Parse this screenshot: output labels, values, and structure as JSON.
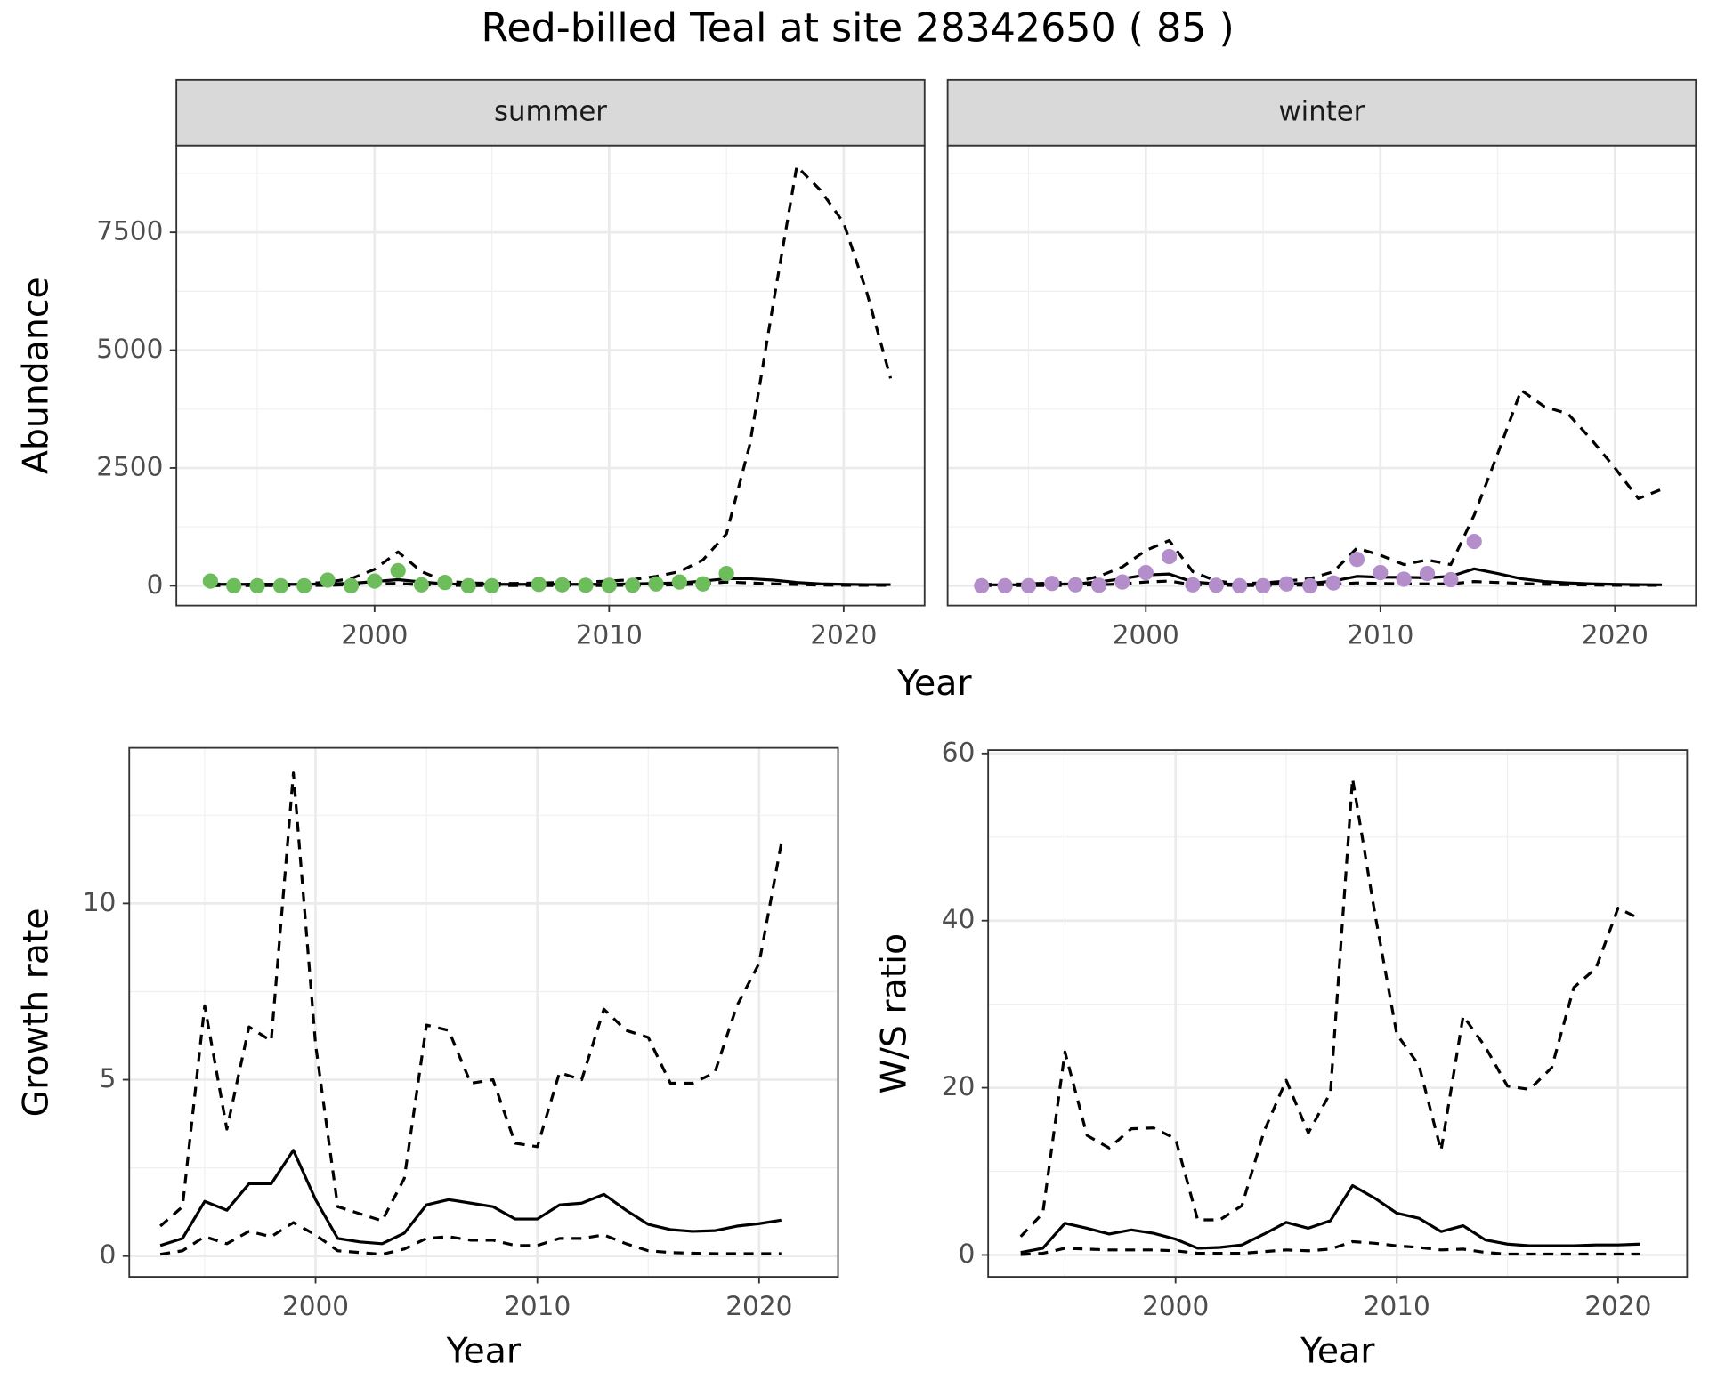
{
  "title": "Red-billed Teal at site 28342650 ( 85 )",
  "facet_xlabel": "Year",
  "facet_ylabel": "Abundance",
  "chart_data": [
    {
      "type": "line",
      "strip": "summer",
      "show_ytick_labels": true,
      "xlim": [
        1991.55,
        2023.45
      ],
      "xticks": [
        2000,
        2010,
        2020
      ],
      "xminor": [
        1995,
        2005,
        2015
      ],
      "ylim": [
        -420,
        9340
      ],
      "yticks": [
        0,
        2500,
        5000,
        7500
      ],
      "yminor": [
        1250,
        3750,
        6250,
        8750
      ],
      "grid": true,
      "x": [
        1993,
        1994,
        1995,
        1996,
        1997,
        1998,
        1999,
        2000,
        2001,
        2002,
        2003,
        2004,
        2005,
        2006,
        2007,
        2008,
        2009,
        2010,
        2011,
        2012,
        2013,
        2014,
        2015,
        2016,
        2017,
        2018,
        2019,
        2020,
        2021,
        2022
      ],
      "series": [
        {
          "kind": "line",
          "dash": true,
          "color": "#000000",
          "values": [
            40,
            30,
            30,
            30,
            40,
            80,
            150,
            350,
            720,
            300,
            100,
            60,
            50,
            50,
            60,
            70,
            80,
            100,
            130,
            200,
            300,
            550,
            1100,
            3000,
            6000,
            8900,
            8400,
            7700,
            6200,
            4400
          ]
        },
        {
          "kind": "line",
          "dash": false,
          "color": "#000000",
          "values": [
            30,
            30,
            30,
            30,
            30,
            40,
            50,
            90,
            130,
            80,
            40,
            30,
            30,
            30,
            30,
            30,
            30,
            30,
            40,
            50,
            60,
            100,
            150,
            150,
            120,
            70,
            40,
            30,
            25,
            25
          ]
        },
        {
          "kind": "line",
          "dash": true,
          "color": "#000000",
          "values": [
            5,
            5,
            5,
            5,
            5,
            10,
            20,
            40,
            50,
            20,
            10,
            5,
            5,
            5,
            5,
            5,
            5,
            5,
            10,
            15,
            20,
            40,
            80,
            60,
            40,
            25,
            15,
            10,
            10,
            10
          ]
        },
        {
          "kind": "points",
          "color": "#6dbd5d",
          "values": [
            100,
            0,
            0,
            0,
            0,
            120,
            0,
            100,
            320,
            20,
            70,
            0,
            0,
            null,
            30,
            20,
            10,
            10,
            10,
            40,
            80,
            40,
            260,
            null,
            null,
            null,
            null,
            null,
            null,
            null
          ]
        }
      ]
    },
    {
      "type": "line",
      "strip": "winter",
      "show_ytick_labels": false,
      "xlim": [
        1991.55,
        2023.45
      ],
      "xticks": [
        2000,
        2010,
        2020
      ],
      "xminor": [
        1995,
        2005,
        2015
      ],
      "ylim": [
        -420,
        9340
      ],
      "yticks": [
        0,
        2500,
        5000,
        7500
      ],
      "yminor": [
        1250,
        3750,
        6250,
        8750
      ],
      "grid": true,
      "x": [
        1993,
        1994,
        1995,
        1996,
        1997,
        1998,
        1999,
        2000,
        2001,
        2002,
        2003,
        2004,
        2005,
        2006,
        2007,
        2008,
        2009,
        2010,
        2011,
        2012,
        2013,
        2014,
        2015,
        2016,
        2017,
        2018,
        2019,
        2020,
        2021,
        2022
      ],
      "series": [
        {
          "kind": "line",
          "dash": true,
          "color": "#000000",
          "values": [
            30,
            30,
            40,
            60,
            80,
            200,
            400,
            750,
            960,
            300,
            100,
            50,
            60,
            100,
            150,
            300,
            800,
            650,
            450,
            550,
            450,
            1500,
            2800,
            4150,
            3800,
            3650,
            3100,
            2500,
            1850,
            2050
          ]
        },
        {
          "kind": "line",
          "dash": false,
          "color": "#000000",
          "values": [
            20,
            20,
            20,
            30,
            40,
            80,
            150,
            230,
            250,
            80,
            40,
            30,
            30,
            40,
            50,
            100,
            200,
            180,
            180,
            170,
            200,
            360,
            260,
            150,
            90,
            60,
            40,
            30,
            25,
            20
          ]
        },
        {
          "kind": "line",
          "dash": true,
          "color": "#000000",
          "values": [
            5,
            5,
            5,
            5,
            10,
            20,
            40,
            80,
            100,
            20,
            10,
            5,
            5,
            10,
            15,
            30,
            60,
            50,
            40,
            40,
            40,
            90,
            70,
            50,
            30,
            20,
            15,
            10,
            10,
            10
          ]
        },
        {
          "kind": "points",
          "color": "#b48ecb",
          "values": [
            0,
            0,
            0,
            50,
            20,
            10,
            80,
            280,
            620,
            20,
            10,
            0,
            0,
            40,
            0,
            60,
            560,
            280,
            140,
            260,
            130,
            940,
            null,
            null,
            null,
            null,
            null,
            null,
            null,
            null
          ]
        }
      ]
    },
    {
      "type": "line",
      "xlabel": "Year",
      "ylabel": "Growth rate",
      "show_ytick_labels": true,
      "xlim": [
        1991.6,
        2023.56
      ],
      "xticks": [
        2000,
        2010,
        2020
      ],
      "xminor": [
        1995,
        2005,
        2015
      ],
      "ylim": [
        -0.59,
        14.41
      ],
      "yticks": [
        0,
        5,
        10
      ],
      "yminor": [
        2.5,
        7.5,
        12.5
      ],
      "grid": true,
      "x": [
        1993,
        1994,
        1995,
        1996,
        1997,
        1998,
        1999,
        2000,
        2001,
        2002,
        2003,
        2004,
        2005,
        2006,
        2007,
        2008,
        2009,
        2010,
        2011,
        2012,
        2013,
        2014,
        2015,
        2016,
        2017,
        2018,
        2019,
        2020,
        2021
      ],
      "series": [
        {
          "kind": "line",
          "dash": true,
          "color": "#000000",
          "values": [
            0.85,
            1.4,
            7.1,
            3.6,
            6.5,
            6.1,
            13.7,
            6.0,
            1.4,
            1.2,
            1.0,
            2.2,
            6.55,
            6.4,
            4.9,
            5.0,
            3.2,
            3.1,
            5.2,
            5.0,
            7.0,
            6.4,
            6.2,
            4.9,
            4.9,
            5.2,
            7.1,
            8.3,
            11.7
          ]
        },
        {
          "kind": "line",
          "dash": false,
          "color": "#000000",
          "values": [
            0.3,
            0.5,
            1.55,
            1.3,
            2.05,
            2.05,
            3.0,
            1.6,
            0.5,
            0.4,
            0.35,
            0.65,
            1.45,
            1.6,
            1.5,
            1.4,
            1.05,
            1.05,
            1.45,
            1.5,
            1.75,
            1.3,
            0.9,
            0.75,
            0.7,
            0.72,
            0.85,
            0.92,
            1.02
          ]
        },
        {
          "kind": "line",
          "dash": true,
          "color": "#000000",
          "values": [
            0.05,
            0.15,
            0.55,
            0.35,
            0.7,
            0.55,
            0.95,
            0.6,
            0.15,
            0.1,
            0.05,
            0.2,
            0.5,
            0.55,
            0.45,
            0.45,
            0.3,
            0.3,
            0.5,
            0.5,
            0.6,
            0.35,
            0.15,
            0.1,
            0.08,
            0.07,
            0.07,
            0.07,
            0.07
          ]
        }
      ]
    },
    {
      "type": "line",
      "xlabel": "Year",
      "ylabel": "W/S ratio",
      "show_ytick_labels": true,
      "xlim": [
        1991.53,
        2023.12
      ],
      "xticks": [
        2000,
        2010,
        2020
      ],
      "xminor": [
        1995,
        2005,
        2015
      ],
      "ylim": [
        -2.62,
        60.4
      ],
      "yticks": [
        0,
        20,
        40,
        60
      ],
      "yminor": [
        10,
        30,
        50
      ],
      "grid": true,
      "x": [
        1993,
        1994,
        1995,
        1996,
        1997,
        1998,
        1999,
        2000,
        2001,
        2002,
        2003,
        2004,
        2005,
        2006,
        2007,
        2008,
        2009,
        2010,
        2011,
        2012,
        2013,
        2014,
        2015,
        2016,
        2017,
        2018,
        2019,
        2020,
        2021
      ],
      "series": [
        {
          "kind": "line",
          "dash": true,
          "color": "#000000",
          "values": [
            2.2,
            5,
            24.3,
            14.3,
            12.8,
            15.1,
            15.2,
            13.9,
            4.2,
            4.2,
            5.9,
            14.8,
            20.9,
            14.6,
            19.4,
            57,
            41,
            26.4,
            22.7,
            12.5,
            28.6,
            24.9,
            20.2,
            19.8,
            22.4,
            32,
            34.3,
            41.5,
            40.2
          ]
        },
        {
          "kind": "line",
          "dash": false,
          "color": "#000000",
          "values": [
            0.3,
            0.8,
            3.8,
            3.2,
            2.5,
            3.0,
            2.6,
            1.9,
            0.8,
            0.9,
            1.2,
            2.5,
            3.9,
            3.2,
            4.1,
            8.3,
            6.8,
            5.0,
            4.4,
            2.8,
            3.5,
            1.8,
            1.3,
            1.1,
            1.1,
            1.1,
            1.2,
            1.2,
            1.3
          ]
        },
        {
          "kind": "line",
          "dash": true,
          "color": "#000000",
          "values": [
            0.05,
            0.2,
            0.8,
            0.7,
            0.6,
            0.6,
            0.6,
            0.5,
            0.2,
            0.2,
            0.2,
            0.4,
            0.6,
            0.5,
            0.7,
            1.6,
            1.4,
            1.1,
            0.9,
            0.6,
            0.7,
            0.3,
            0.1,
            0.1,
            0.1,
            0.1,
            0.1,
            0.1,
            0.1
          ]
        }
      ]
    }
  ]
}
